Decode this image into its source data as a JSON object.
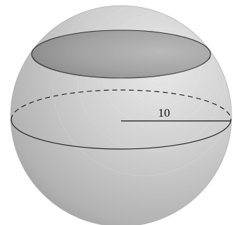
{
  "figure": {
    "radius_label": "10"
  },
  "colors": {
    "sphere_light": "#e6e6e6",
    "sphere_mid": "#bdbdbd",
    "sphere_dark": "#8f8f8f",
    "cap_fill": "#9c9c9c",
    "outline": "#222222"
  }
}
